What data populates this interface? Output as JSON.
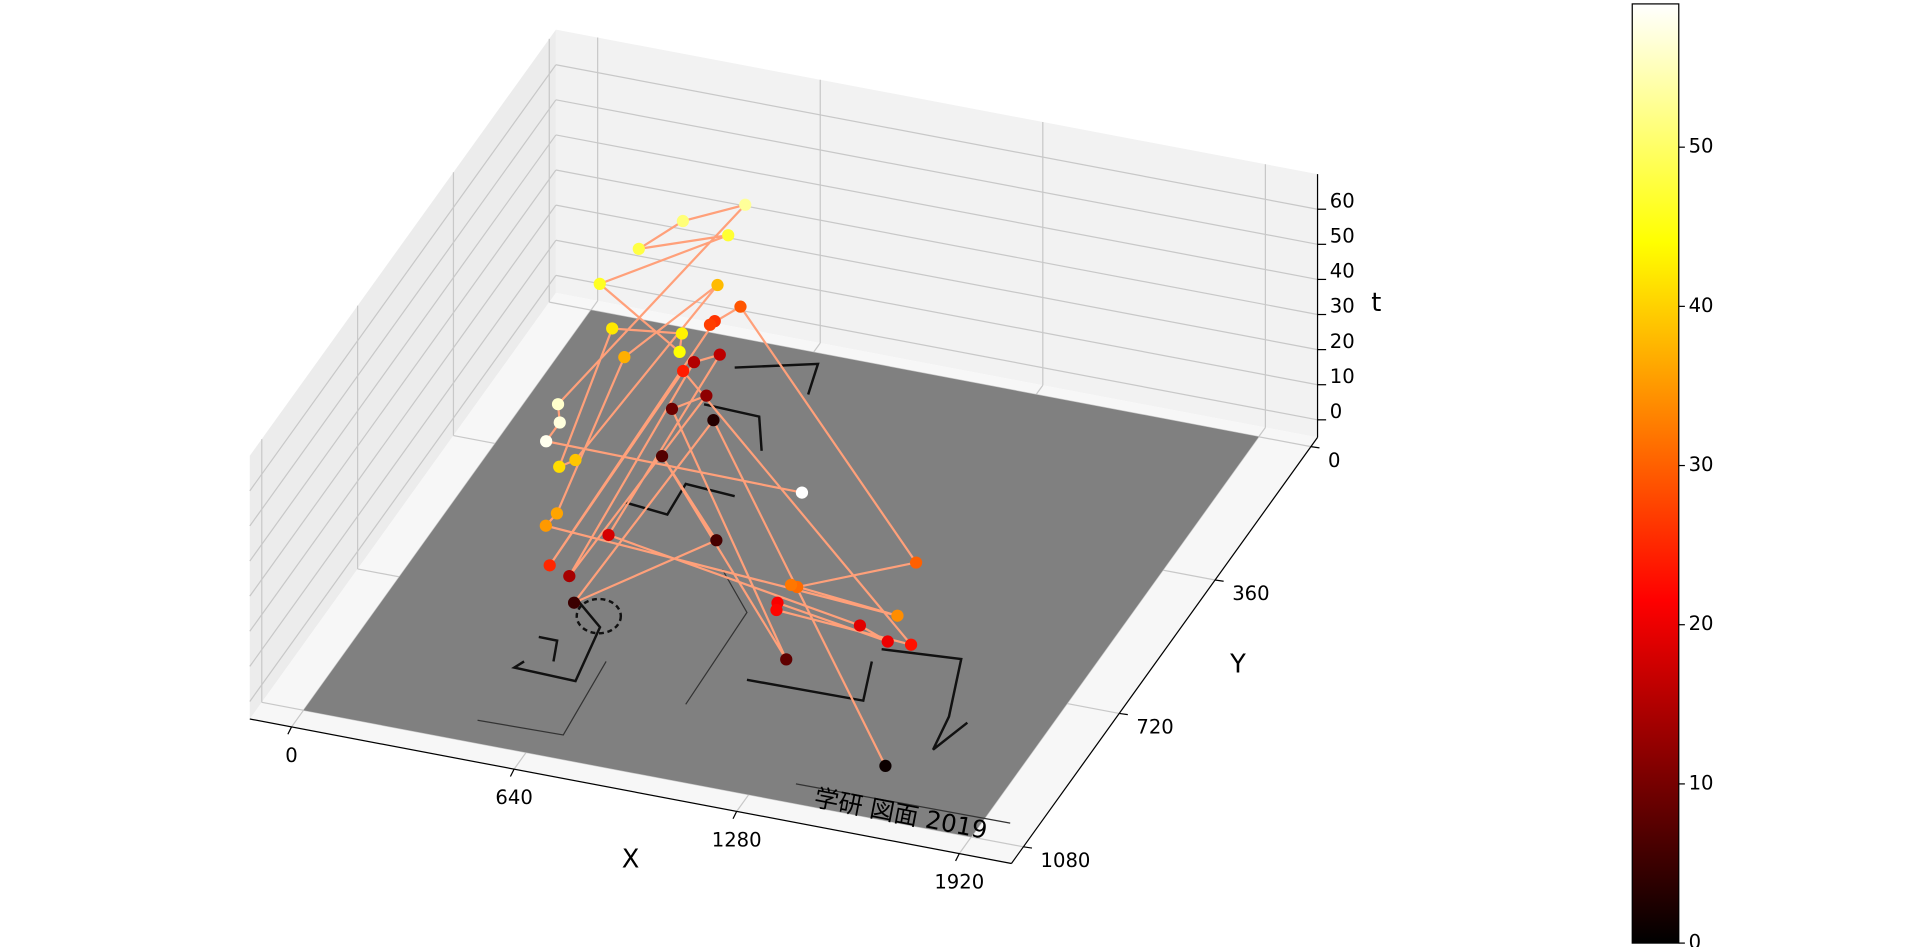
{
  "chart_data": {
    "type": "scatter3d",
    "xlabel": "X",
    "ylabel": "Y",
    "zlabel": "t",
    "x": [
      1612,
      561,
      553,
      806,
      522,
      1212,
      474,
      556,
      550,
      483,
      541,
      600,
      1407,
      1513,
      1170,
      1187,
      1597,
      529,
      551,
      531,
      532,
      589,
      1505,
      1255,
      1242,
      1580,
      533,
      545,
      438,
      549,
      514,
      498,
      387,
      579,
      613,
      300,
      543,
      348,
      428,
      569,
      477,
      521,
      527,
      1274
    ],
    "y": [
      1000,
      273,
      786,
      582,
      415,
      850,
      315,
      293,
      800,
      244,
      223,
      718,
      828,
      862,
      828,
      854,
      884,
      345,
      875,
      229,
      248,
      208,
      745,
      865,
      871,
      913,
      866,
      840,
      447,
      242,
      730,
      770,
      426,
      415,
      468,
      359,
      194,
      275,
      214,
      164,
      747,
      798,
      857,
      872
    ],
    "t": [
      1,
      3,
      5,
      6,
      7,
      8,
      9,
      12,
      14,
      15,
      16,
      18,
      19,
      20,
      21,
      22,
      23,
      24,
      25,
      26,
      27,
      29,
      30,
      31,
      32,
      34,
      35,
      36,
      37,
      38,
      39,
      41,
      42,
      43,
      44,
      46,
      47,
      48,
      51,
      53,
      56,
      57,
      58,
      59
    ],
    "xlim": [
      -120,
      2070
    ],
    "ylim": [
      -25,
      1125
    ],
    "zlim": [
      -5,
      70
    ],
    "xticks": [
      0,
      640,
      1280,
      1920
    ],
    "yticks": [
      0,
      360,
      720,
      1080
    ],
    "zticks": [
      0,
      10,
      20,
      30,
      40,
      50,
      60
    ],
    "grid": true,
    "colormap": "hot",
    "clim": [
      0,
      59
    ],
    "cbar_ticks": [
      0,
      10,
      20,
      30,
      40,
      50
    ],
    "line_color": "#ffa07a",
    "floor_color": "#808080",
    "floor_text": "学研 図面 2019"
  }
}
